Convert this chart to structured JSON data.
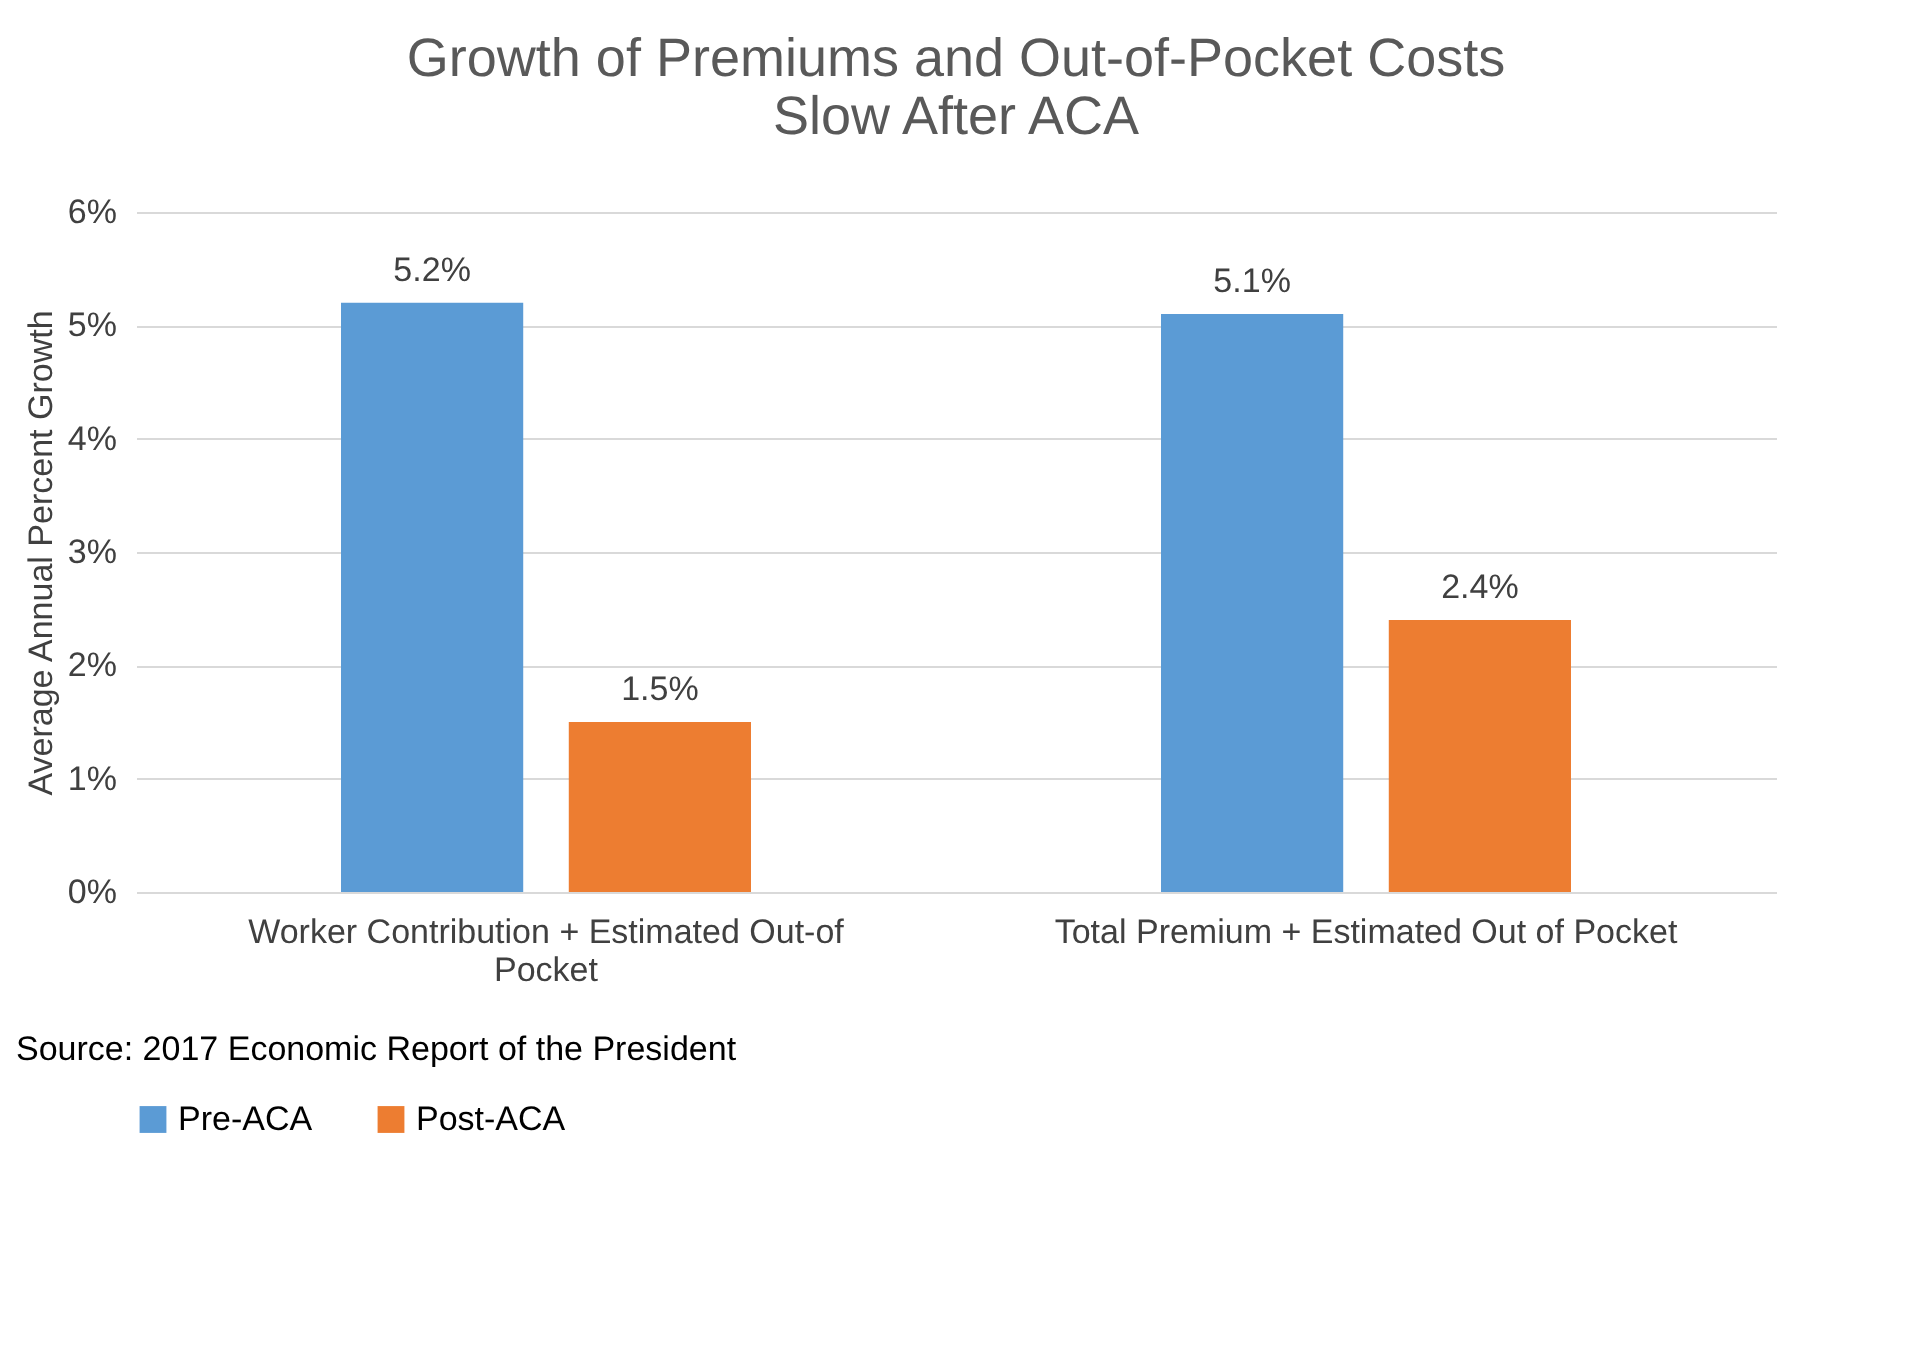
{
  "chart_data": {
    "type": "bar",
    "title": "Growth of Premiums and Out-of-Pocket Costs Slow After ACA",
    "ylabel": "Average Annual Percent Growth",
    "categories": [
      "Worker Contribution + Estimated Out-of Pocket",
      "Total Premium + Estimated Out of Pocket"
    ],
    "series": [
      {
        "name": "Pre-ACA",
        "color": "#5b9bd5",
        "values": [
          5.2,
          5.1
        ],
        "value_labels": [
          "5.2%",
          "5.1%"
        ]
      },
      {
        "name": "Post-ACA",
        "color": "#ed7d31",
        "values": [
          1.5,
          2.4
        ],
        "value_labels": [
          "1.5%",
          "2.4%"
        ]
      }
    ],
    "ylim": [
      0,
      6
    ],
    "yticks": [
      {
        "value": 0,
        "label": "0%"
      },
      {
        "value": 1,
        "label": "1%"
      },
      {
        "value": 2,
        "label": "2%"
      },
      {
        "value": 3,
        "label": "3%"
      },
      {
        "value": 4,
        "label": "4%"
      },
      {
        "value": 5,
        "label": "5%"
      },
      {
        "value": 6,
        "label": "6%"
      }
    ],
    "grid": "y",
    "legend": "bottom",
    "annotations": [
      "Source: 2017 Economic Report of the President"
    ]
  }
}
